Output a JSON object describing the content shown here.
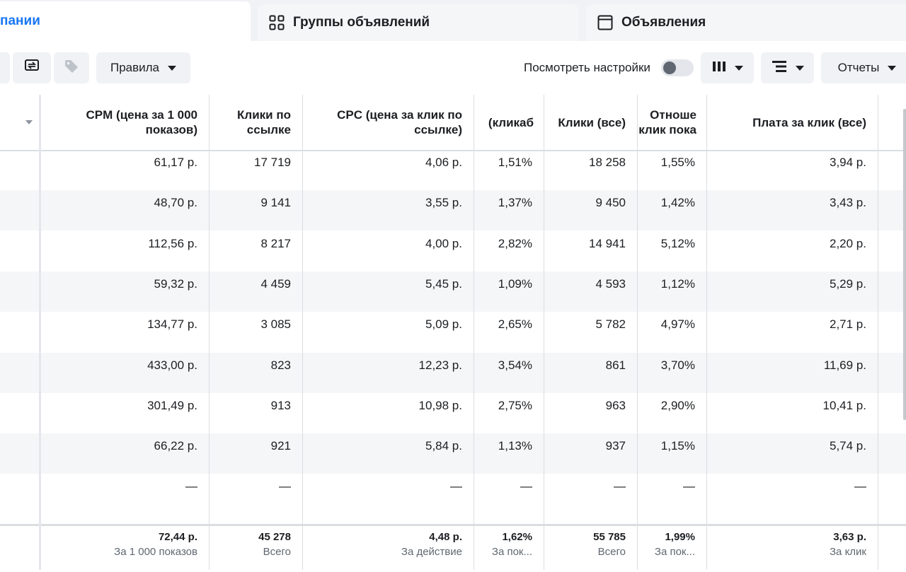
{
  "tabs": [
    {
      "label": "пании"
    },
    {
      "label": "Группы объявлений"
    },
    {
      "label": "Объявления"
    }
  ],
  "toolbar": {
    "rules_label": "Правила",
    "view_settings_label": "Посмотреть настройки",
    "reports_label": "Отчеты"
  },
  "columns": [
    "CPM (цена за 1 000 показов)",
    "Клики по ссылке",
    "CPC (цена за клик по ссылке)",
    "(кликаб",
    "Клики (все)",
    "Отноше клик пока",
    "Плата за клик (все)"
  ],
  "rows": [
    [
      "61,17 р.",
      "17 719",
      "4,06 р.",
      "1,51%",
      "18 258",
      "1,55%",
      "3,94 р."
    ],
    [
      "48,70 р.",
      "9 141",
      "3,55 р.",
      "1,37%",
      "9 450",
      "1,42%",
      "3,43 р."
    ],
    [
      "112,56 р.",
      "8 217",
      "4,00 р.",
      "2,82%",
      "14 941",
      "5,12%",
      "2,20 р."
    ],
    [
      "59,32 р.",
      "4 459",
      "5,45 р.",
      "1,09%",
      "4 593",
      "1,12%",
      "5,29 р."
    ],
    [
      "134,77 р.",
      "3 085",
      "5,09 р.",
      "2,65%",
      "5 782",
      "4,97%",
      "2,71 р."
    ],
    [
      "433,00 р.",
      "823",
      "12,23 р.",
      "3,54%",
      "861",
      "3,70%",
      "11,69 р."
    ],
    [
      "301,49 р.",
      "913",
      "10,98 р.",
      "2,75%",
      "963",
      "2,90%",
      "10,41 р."
    ],
    [
      "66,22 р.",
      "921",
      "5,84 р.",
      "1,13%",
      "937",
      "1,15%",
      "5,74 р."
    ],
    [
      "—",
      "—",
      "—",
      "—",
      "—",
      "—",
      "—"
    ]
  ],
  "footer": [
    {
      "value": "72,44 р.",
      "sub": "За 1 000 показов"
    },
    {
      "value": "45 278",
      "sub": "Всего"
    },
    {
      "value": "4,48 р.",
      "sub": "За действие"
    },
    {
      "value": "1,62%",
      "sub": "За пок..."
    },
    {
      "value": "55 785",
      "sub": "Всего"
    },
    {
      "value": "1,99%",
      "sub": "За пок..."
    },
    {
      "value": "3,63 р.",
      "sub": "За клик"
    }
  ]
}
